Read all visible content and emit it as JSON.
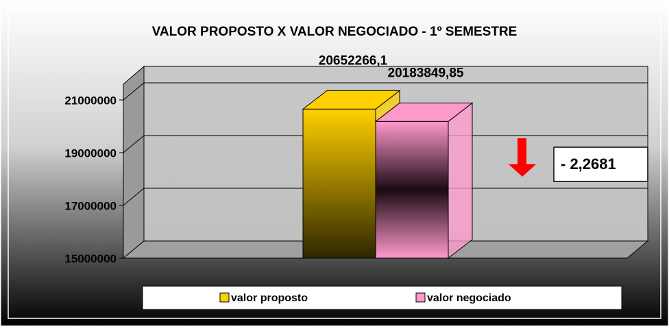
{
  "chart_data": {
    "type": "bar3d",
    "title": "VALOR PROPOSTO X VALOR NEGOCIADO - 1º SEMESTRE",
    "categories": [
      null
    ],
    "series": [
      {
        "name": "valor proposto",
        "color": "#ffd000",
        "values": [
          20652266.1
        ],
        "value_labels": [
          "20652266,1"
        ]
      },
      {
        "name": "valor negociado",
        "color": "#ff99cc",
        "values": [
          20183849.85
        ],
        "value_labels": [
          "20183849,85"
        ]
      }
    ],
    "ylim": [
      15000000,
      21500000
    ],
    "yticks": [
      15000000,
      17000000,
      19000000,
      21000000
    ],
    "grid": true,
    "annotation": "- 2,2681",
    "legend": "bottom"
  }
}
